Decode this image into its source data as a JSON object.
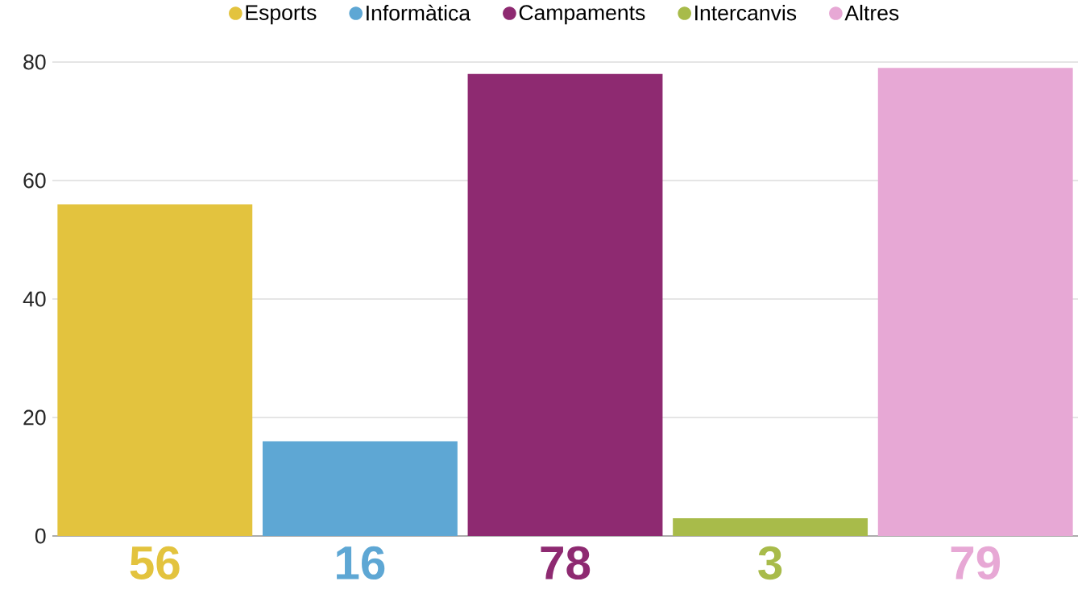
{
  "chart_data": {
    "type": "bar",
    "categories": [
      null,
      null,
      null,
      null,
      null
    ],
    "series": [
      {
        "name": "Esports",
        "color": "#e3c33e",
        "values": [
          56,
          null,
          null,
          null,
          null
        ],
        "value_labels": [
          "56",
          null,
          null,
          null,
          null
        ]
      },
      {
        "name": "Informàtica",
        "color": "#5ea7d4",
        "values": [
          null,
          16,
          null,
          null,
          null
        ],
        "value_labels": [
          null,
          "16",
          null,
          null,
          null
        ]
      },
      {
        "name": "Campaments",
        "color": "#8e2a71",
        "values": [
          null,
          null,
          78,
          null,
          null
        ],
        "value_labels": [
          null,
          null,
          "78",
          null,
          null
        ]
      },
      {
        "name": "Intercanvis",
        "color": "#a8bb4a",
        "values": [
          null,
          null,
          null,
          3,
          null
        ],
        "value_labels": [
          null,
          null,
          null,
          "3",
          null
        ]
      },
      {
        "name": "Altres",
        "color": "#e7a8d5",
        "values": [
          null,
          null,
          null,
          null,
          79
        ],
        "value_labels": [
          null,
          null,
          null,
          null,
          "79"
        ]
      }
    ],
    "ylim": [
      0,
      80
    ],
    "yticks": [
      0,
      20,
      40,
      60,
      80
    ],
    "grid": "y",
    "legend": "top"
  }
}
